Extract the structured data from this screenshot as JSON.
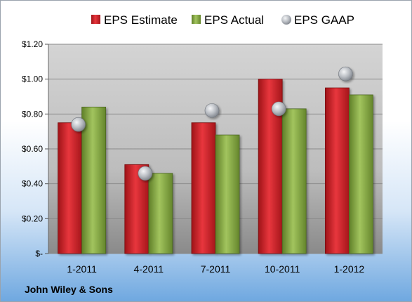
{
  "chart_data": {
    "type": "bar",
    "categories": [
      "1-2011",
      "4-2011",
      "7-2011",
      "10-2011",
      "1-2012"
    ],
    "series": [
      {
        "name": "EPS Estimate",
        "type": "bar",
        "color": "#d9262e",
        "values": [
          0.75,
          0.51,
          0.75,
          1.0,
          0.95
        ]
      },
      {
        "name": "EPS Actual",
        "type": "bar",
        "color": "#8db04a",
        "values": [
          0.84,
          0.46,
          0.68,
          0.83,
          0.91
        ]
      },
      {
        "name": "EPS GAAP",
        "type": "scatter",
        "color": "#b8bcc2",
        "values": [
          0.74,
          0.46,
          0.82,
          0.83,
          1.03
        ]
      }
    ],
    "ylim": [
      0,
      1.2
    ],
    "yticks": [
      0,
      0.2,
      0.4,
      0.6,
      0.8,
      1.0,
      1.2
    ],
    "ytick_labels": [
      "$-",
      "$0.20",
      "$0.40",
      "$0.60",
      "$0.80",
      "$1.00",
      "$1.20"
    ],
    "grid": true,
    "legend_position": "top"
  },
  "footer": {
    "company": "John Wiley & Sons"
  }
}
